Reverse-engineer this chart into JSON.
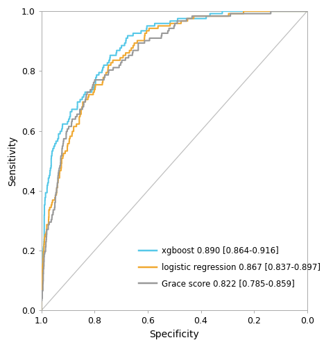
{
  "title": "",
  "xlabel": "Specificity",
  "ylabel": "Sensitivity",
  "xlim": [
    1.0,
    0.0
  ],
  "ylim": [
    0.0,
    1.0
  ],
  "xticks": [
    1.0,
    0.8,
    0.6,
    0.4,
    0.2,
    0.0
  ],
  "yticks": [
    0.0,
    0.2,
    0.4,
    0.6,
    0.8,
    1.0
  ],
  "diagonal_color": "#c0c0c0",
  "background_color": "#ffffff",
  "plot_bg_color": "#ffffff",
  "curves": [
    {
      "label": "xgboost 0.890 [0.864-0.916]",
      "color": "#56c8e8",
      "auc": 0.89,
      "seed": 101
    },
    {
      "label": "logistic regression 0.867 [0.837-0.897]",
      "color": "#f0a830",
      "auc": 0.867,
      "seed": 202
    },
    {
      "label": "Grace score 0.822 [0.785-0.859]",
      "color": "#999999",
      "auc": 0.822,
      "seed": 303
    }
  ],
  "font_size": 10,
  "tick_font_size": 9,
  "line_width": 1.5,
  "n_samples": 1722,
  "n_positive": 122,
  "figsize": [
    4.8,
    5.0
  ],
  "dpi": 100
}
